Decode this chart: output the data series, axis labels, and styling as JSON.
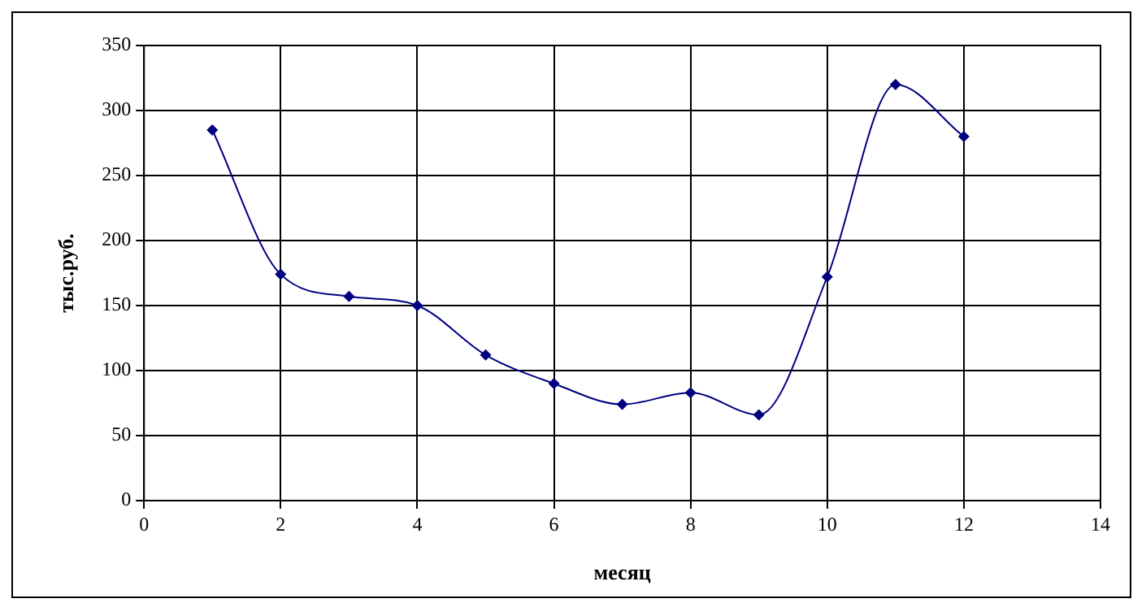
{
  "chart_data": {
    "type": "line",
    "xlabel": "месяц",
    "ylabel": "тыс.руб.",
    "x": [
      1,
      2,
      3,
      4,
      5,
      6,
      7,
      8,
      9,
      10,
      11,
      12
    ],
    "series": [
      {
        "color": "#000080",
        "values": [
          285,
          174,
          157,
          150,
          112,
          90,
          74,
          83,
          66,
          172,
          320,
          280
        ]
      }
    ],
    "xlim": [
      0,
      14
    ],
    "xticks": [
      0,
      2,
      4,
      6,
      8,
      10,
      12,
      14
    ],
    "ylim": [
      0,
      350
    ],
    "yticks": [
      0,
      50,
      100,
      150,
      200,
      250,
      300,
      350
    ],
    "grid": true,
    "legend": false,
    "marker": "diamond",
    "line_style": "solid"
  }
}
